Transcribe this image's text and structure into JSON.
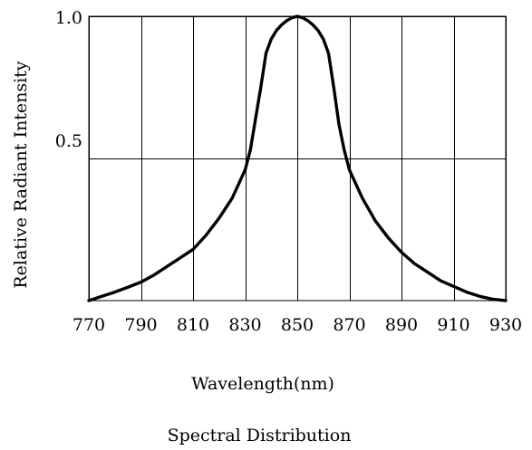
{
  "chart_data": {
    "type": "line",
    "xlabel": "Wavelength(nm)",
    "ylabel": "Relative Radiant Intensity",
    "caption": "Spectral Distribution",
    "xlim": [
      770,
      930
    ],
    "ylim": [
      0,
      1.0
    ],
    "x_ticks": [
      770,
      790,
      810,
      830,
      850,
      870,
      890,
      910,
      930
    ],
    "y_ticks": [
      0.5,
      1.0
    ],
    "y_tick_labels": [
      "0.5",
      "1.0"
    ],
    "grid": true,
    "legend": "none",
    "series": [
      {
        "x": [
          770,
          775,
          780,
          785,
          790,
          795,
          800,
          805,
          810,
          815,
          820,
          825,
          830,
          832,
          834,
          836,
          838,
          840,
          842,
          844,
          846,
          848,
          850,
          852,
          854,
          856,
          858,
          860,
          862,
          864,
          866,
          868,
          870,
          875,
          880,
          885,
          890,
          895,
          900,
          905,
          910,
          915,
          920,
          925,
          930
        ],
        "y": [
          0.0,
          0.015,
          0.03,
          0.047,
          0.065,
          0.09,
          0.12,
          0.15,
          0.18,
          0.23,
          0.29,
          0.36,
          0.46,
          0.53,
          0.64,
          0.75,
          0.87,
          0.92,
          0.95,
          0.97,
          0.985,
          0.995,
          1.0,
          0.995,
          0.985,
          0.97,
          0.95,
          0.92,
          0.87,
          0.75,
          0.62,
          0.53,
          0.46,
          0.36,
          0.28,
          0.22,
          0.17,
          0.13,
          0.1,
          0.07,
          0.05,
          0.03,
          0.015,
          0.005,
          0.0
        ]
      }
    ]
  }
}
